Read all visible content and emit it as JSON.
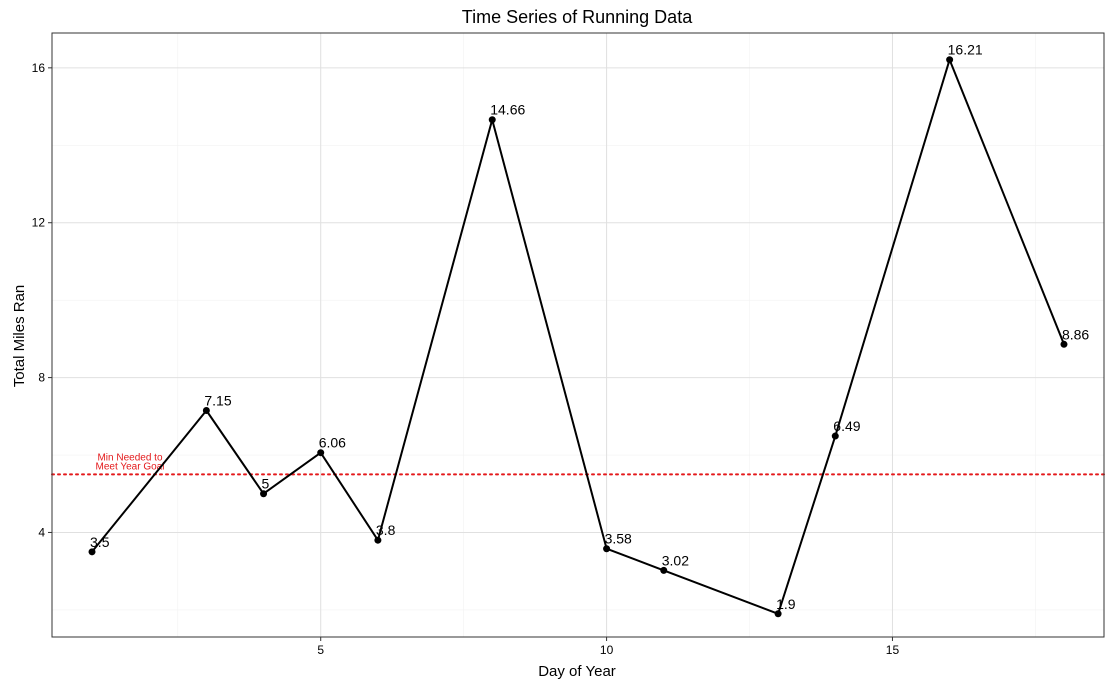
{
  "chart_data": {
    "type": "line",
    "title": "Time Series of Running Data",
    "xlabel": "Day of Year",
    "ylabel": "Total Miles Ran",
    "xlim": [
      0.3,
      18.7
    ],
    "ylim": [
      1.3,
      16.9
    ],
    "xticks": [
      5,
      10,
      15
    ],
    "yticks": [
      4,
      8,
      12,
      16
    ],
    "x_tick_labels": [
      "5",
      "10",
      "15"
    ],
    "y_tick_labels": [
      "4",
      "8",
      "12",
      "16"
    ],
    "grid": true,
    "series": [
      {
        "x": [
          1,
          3,
          4,
          5,
          6,
          8,
          10,
          11,
          13,
          14,
          16,
          18
        ],
        "y": [
          3.5,
          7.15,
          5,
          6.06,
          3.8,
          14.66,
          3.58,
          3.02,
          1.9,
          6.49,
          16.21,
          8.86
        ],
        "labels": [
          "3.5",
          "7.15",
          "5",
          "6.06",
          "3.8",
          "14.66",
          "3.58",
          "3.02",
          "1.9",
          "6.49",
          "16.21",
          "8.86"
        ],
        "color": "#000000"
      }
    ],
    "reference_line": {
      "y": 5.5,
      "color": "#e41a1c",
      "style": "dotted",
      "label_line1": "Min Needed to",
      "label_line2": "Meet Year Goal"
    }
  }
}
